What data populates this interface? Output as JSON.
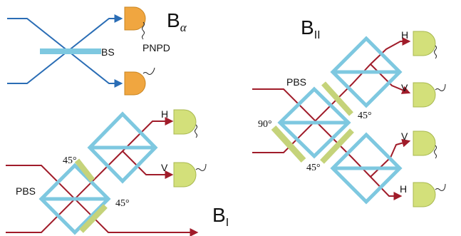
{
  "colors": {
    "beam_blue": "#2a6db5",
    "beam_red": "#a01c2a",
    "splitter_cyan": "#7ec8e0",
    "plate_green": "#c5d37a",
    "detector_orange": "#f0a640",
    "detector_green": "#d3e07a"
  },
  "labels": {
    "b_alpha_main": "B",
    "b_alpha_sub": "α",
    "bs": "BS",
    "pnpd": "PNPD",
    "b_II_main": "B",
    "b_II_sub": "II",
    "b_I_main": "B",
    "b_I_sub": "I",
    "pbs_I": "PBS",
    "pbs_II": "PBS",
    "h": "H",
    "v": "V",
    "angle_45": "45°",
    "angle_90": "90°"
  }
}
